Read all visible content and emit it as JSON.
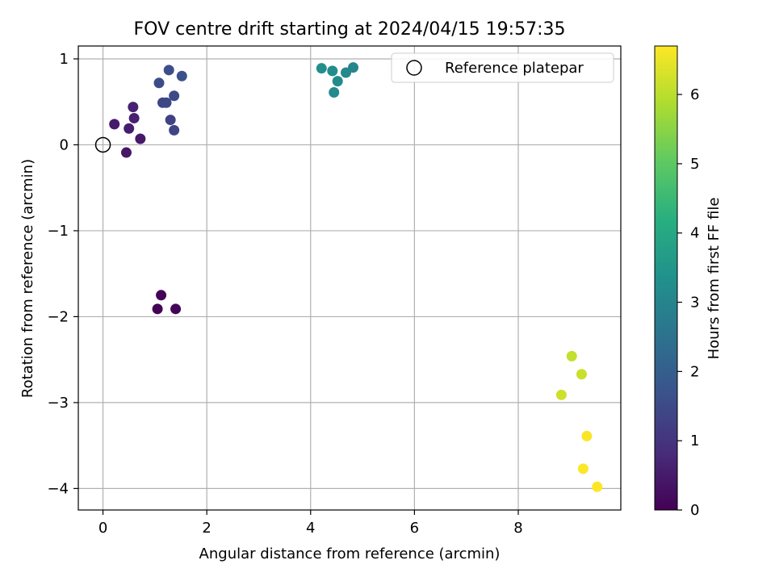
{
  "chart_data": {
    "type": "scatter",
    "title": "FOV centre drift starting at 2024/04/15 19:57:35",
    "xlabel": "Angular distance from reference (arcmin)",
    "ylabel": "Rotation from reference (arcmin)",
    "xlim": [
      -0.475,
      9.975
    ],
    "ylim": [
      -4.25,
      1.15
    ],
    "xticks": [
      0,
      2,
      4,
      6,
      8
    ],
    "xtick_labels": [
      "0",
      "2",
      "4",
      "6",
      "8"
    ],
    "yticks": [
      1,
      0,
      -1,
      -2,
      -3,
      -4
    ],
    "ytick_labels": [
      "1",
      "0",
      "−1",
      "−2",
      "−3",
      "−4"
    ],
    "grid": true,
    "colormap": "viridis",
    "colorbar": {
      "label": "Hours from first FF file",
      "range": [
        0,
        6.7
      ],
      "ticks": [
        0,
        1,
        2,
        3,
        4,
        5,
        6
      ],
      "tick_labels": [
        "0",
        "1",
        "2",
        "3",
        "4",
        "5",
        "6"
      ]
    },
    "legend": {
      "position": "top-right",
      "entries": [
        {
          "label": "Reference platepar",
          "marker": "open-circle"
        }
      ]
    },
    "reference_point": {
      "x": 0,
      "y": 0
    },
    "points": [
      {
        "x": 1.05,
        "y": -1.91,
        "hours": 0.02
      },
      {
        "x": 1.12,
        "y": -1.75,
        "hours": 0.05
      },
      {
        "x": 1.4,
        "y": -1.91,
        "hours": 0.08
      },
      {
        "x": 0.45,
        "y": -0.09,
        "hours": 0.4
      },
      {
        "x": 0.72,
        "y": 0.07,
        "hours": 0.45
      },
      {
        "x": 0.22,
        "y": 0.24,
        "hours": 0.5
      },
      {
        "x": 0.5,
        "y": 0.19,
        "hours": 0.55
      },
      {
        "x": 0.6,
        "y": 0.31,
        "hours": 0.6
      },
      {
        "x": 0.58,
        "y": 0.44,
        "hours": 0.65
      },
      {
        "x": 1.3,
        "y": 0.29,
        "hours": 1.3
      },
      {
        "x": 1.37,
        "y": 0.17,
        "hours": 1.35
      },
      {
        "x": 1.15,
        "y": 0.49,
        "hours": 1.4
      },
      {
        "x": 1.22,
        "y": 0.49,
        "hours": 1.45
      },
      {
        "x": 1.37,
        "y": 0.57,
        "hours": 1.5
      },
      {
        "x": 1.08,
        "y": 0.72,
        "hours": 1.55
      },
      {
        "x": 1.27,
        "y": 0.87,
        "hours": 1.6
      },
      {
        "x": 1.52,
        "y": 0.8,
        "hours": 1.65
      },
      {
        "x": 4.21,
        "y": 0.89,
        "hours": 3.3
      },
      {
        "x": 4.42,
        "y": 0.86,
        "hours": 3.25
      },
      {
        "x": 4.52,
        "y": 0.74,
        "hours": 3.2
      },
      {
        "x": 4.45,
        "y": 0.61,
        "hours": 3.15
      },
      {
        "x": 4.68,
        "y": 0.84,
        "hours": 3.1
      },
      {
        "x": 4.82,
        "y": 0.9,
        "hours": 3.05
      },
      {
        "x": 9.03,
        "y": -2.46,
        "hours": 6.1
      },
      {
        "x": 9.22,
        "y": -2.67,
        "hours": 6.15
      },
      {
        "x": 8.83,
        "y": -2.91,
        "hours": 6.2
      },
      {
        "x": 9.32,
        "y": -3.39,
        "hours": 6.65
      },
      {
        "x": 9.25,
        "y": -3.77,
        "hours": 6.68
      },
      {
        "x": 9.52,
        "y": -3.98,
        "hours": 6.7
      }
    ]
  }
}
